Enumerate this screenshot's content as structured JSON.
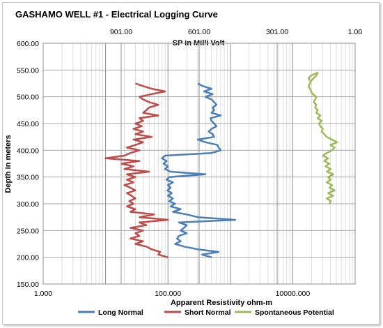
{
  "chart_data": {
    "type": "line",
    "title": "GASHAMO WELL #1 - Electrical Logging Curve",
    "top_axis": {
      "label": "SP in Milli Volt",
      "ticks": [
        "901.00",
        "601.00",
        "301.00",
        "1.00"
      ],
      "range": [
        1201,
        1
      ]
    },
    "bottom_axis": {
      "label": "Apparent Resistivity ohm-m",
      "scale": "log",
      "ticks": [
        "1.000",
        "100.000",
        "10000.000"
      ],
      "range": [
        1,
        100000
      ]
    },
    "y_axis": {
      "label": "Depth in meters",
      "ticks": [
        "150.00",
        "200.00",
        "250.00",
        "300.00",
        "350.00",
        "400.00",
        "450.00",
        "500.00",
        "550.00",
        "600.00"
      ],
      "range": [
        150,
        600
      ]
    },
    "grid": true,
    "legend_position": "bottom",
    "series": [
      {
        "name": "Long Normal",
        "color": "#4a7ebb",
        "axis": "resistivity",
        "points": [
          [
            200,
            500
          ],
          [
            205,
            350
          ],
          [
            210,
            650
          ],
          [
            215,
            300
          ],
          [
            220,
            180
          ],
          [
            225,
            130
          ],
          [
            230,
            160
          ],
          [
            235,
            140
          ],
          [
            240,
            150
          ],
          [
            245,
            200
          ],
          [
            250,
            160
          ],
          [
            255,
            180
          ],
          [
            260,
            200
          ],
          [
            265,
            150
          ],
          [
            270,
            1200
          ],
          [
            275,
            300
          ],
          [
            280,
            200
          ],
          [
            285,
            120
          ],
          [
            290,
            160
          ],
          [
            295,
            110
          ],
          [
            300,
            130
          ],
          [
            305,
            105
          ],
          [
            310,
            120
          ],
          [
            315,
            100
          ],
          [
            320,
            115
          ],
          [
            325,
            98
          ],
          [
            330,
            110
          ],
          [
            335,
            100
          ],
          [
            340,
            120
          ],
          [
            345,
            95
          ],
          [
            350,
            105
          ],
          [
            355,
            400
          ],
          [
            360,
            110
          ],
          [
            365,
            90
          ],
          [
            370,
            100
          ],
          [
            375,
            85
          ],
          [
            380,
            95
          ],
          [
            385,
            80
          ],
          [
            390,
            90
          ],
          [
            395,
            500
          ],
          [
            400,
            700
          ],
          [
            405,
            650
          ],
          [
            410,
            620
          ],
          [
            415,
            400
          ],
          [
            420,
            300
          ],
          [
            425,
            550
          ],
          [
            430,
            520
          ],
          [
            435,
            450
          ],
          [
            440,
            500
          ],
          [
            445,
            600
          ],
          [
            450,
            550
          ],
          [
            455,
            500
          ],
          [
            460,
            480
          ],
          [
            465,
            700
          ],
          [
            470,
            500
          ],
          [
            475,
            550
          ],
          [
            480,
            520
          ],
          [
            485,
            600
          ],
          [
            490,
            550
          ],
          [
            495,
            500
          ],
          [
            500,
            400
          ],
          [
            505,
            520
          ],
          [
            510,
            380
          ],
          [
            515,
            500
          ],
          [
            520,
            360
          ],
          [
            525,
            300
          ]
        ]
      },
      {
        "name": "Short Normal",
        "color": "#be4b48",
        "axis": "resistivity",
        "points": [
          [
            200,
            100
          ],
          [
            205,
            70
          ],
          [
            210,
            75
          ],
          [
            215,
            55
          ],
          [
            220,
            45
          ],
          [
            225,
            30
          ],
          [
            230,
            40
          ],
          [
            235,
            25
          ],
          [
            240,
            35
          ],
          [
            245,
            30
          ],
          [
            250,
            40
          ],
          [
            255,
            25
          ],
          [
            260,
            45
          ],
          [
            265,
            35
          ],
          [
            270,
            100
          ],
          [
            275,
            35
          ],
          [
            280,
            60
          ],
          [
            285,
            25
          ],
          [
            290,
            30
          ],
          [
            295,
            22
          ],
          [
            300,
            28
          ],
          [
            305,
            24
          ],
          [
            310,
            30
          ],
          [
            315,
            26
          ],
          [
            320,
            22
          ],
          [
            325,
            30
          ],
          [
            330,
            25
          ],
          [
            335,
            20
          ],
          [
            340,
            28
          ],
          [
            345,
            22
          ],
          [
            350,
            30
          ],
          [
            355,
            22
          ],
          [
            360,
            50
          ],
          [
            365,
            20
          ],
          [
            370,
            28
          ],
          [
            375,
            18
          ],
          [
            380,
            35
          ],
          [
            385,
            10
          ],
          [
            390,
            20
          ],
          [
            395,
            25
          ],
          [
            400,
            35
          ],
          [
            405,
            22
          ],
          [
            410,
            30
          ],
          [
            415,
            40
          ],
          [
            420,
            28
          ],
          [
            425,
            55
          ],
          [
            430,
            30
          ],
          [
            435,
            40
          ],
          [
            440,
            28
          ],
          [
            445,
            38
          ],
          [
            450,
            30
          ],
          [
            455,
            40
          ],
          [
            460,
            35
          ],
          [
            465,
            70
          ],
          [
            470,
            40
          ],
          [
            475,
            45
          ],
          [
            480,
            50
          ],
          [
            485,
            70
          ],
          [
            490,
            50
          ],
          [
            495,
            40
          ],
          [
            500,
            35
          ],
          [
            505,
            55
          ],
          [
            510,
            90
          ],
          [
            515,
            55
          ],
          [
            520,
            40
          ],
          [
            525,
            30
          ]
        ]
      },
      {
        "name": "Spontaneous Potential",
        "color": "#9bbb59",
        "axis": "sp",
        "points": [
          [
            300,
            100
          ],
          [
            305,
            95
          ],
          [
            310,
            110
          ],
          [
            315,
            85
          ],
          [
            320,
            105
          ],
          [
            325,
            80
          ],
          [
            330,
            100
          ],
          [
            335,
            90
          ],
          [
            340,
            110
          ],
          [
            345,
            95
          ],
          [
            350,
            105
          ],
          [
            355,
            85
          ],
          [
            360,
            110
          ],
          [
            365,
            95
          ],
          [
            370,
            115
          ],
          [
            375,
            100
          ],
          [
            380,
            120
          ],
          [
            385,
            105
          ],
          [
            390,
            125
          ],
          [
            395,
            110
          ],
          [
            400,
            90
          ],
          [
            405,
            80
          ],
          [
            410,
            95
          ],
          [
            415,
            70
          ],
          [
            420,
            90
          ],
          [
            425,
            110
          ],
          [
            430,
            120
          ],
          [
            435,
            130
          ],
          [
            440,
            125
          ],
          [
            445,
            135
          ],
          [
            450,
            140
          ],
          [
            455,
            130
          ],
          [
            460,
            145
          ],
          [
            465,
            135
          ],
          [
            470,
            150
          ],
          [
            475,
            145
          ],
          [
            480,
            155
          ],
          [
            485,
            150
          ],
          [
            490,
            160
          ],
          [
            495,
            155
          ],
          [
            500,
            150
          ],
          [
            505,
            165
          ],
          [
            510,
            170
          ],
          [
            515,
            175
          ],
          [
            520,
            180
          ],
          [
            525,
            175
          ],
          [
            530,
            170
          ],
          [
            535,
            160
          ],
          [
            540,
            150
          ],
          [
            545,
            145
          ],
          [
            540,
            170
          ],
          [
            535,
            180
          ],
          [
            530,
            175
          ]
        ]
      }
    ]
  }
}
